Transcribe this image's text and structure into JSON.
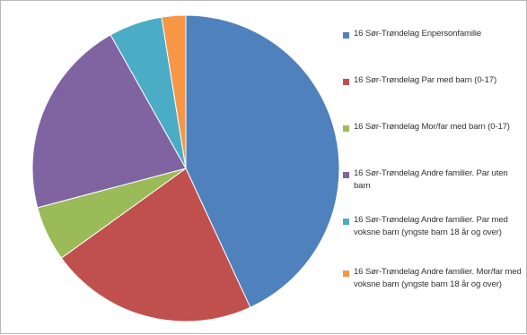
{
  "chart_data": {
    "type": "pie",
    "title": "",
    "series": [
      {
        "name": "16 Sør-Trøndelag Enpersonfamilie",
        "value": 44.4,
        "color": "#4f81bd"
      },
      {
        "name": "16 Sør-Trøndelag Par med barn (0-17)",
        "value": 22.6,
        "color": "#c0504d"
      },
      {
        "name": "16 Sør-Trøndelag Mor/far med barn (0-17)",
        "value": 6.0,
        "color": "#9bbb59"
      },
      {
        "name": "16 Sør-Trøndelag Andre familier. Par uten barn",
        "value": 21.6,
        "color": "#8064a2"
      },
      {
        "name": "16 Sør-Trøndelag Andre familier. Par med voksne barn (yngste barn 18 år og over)",
        "value": 5.8,
        "color": "#4bacc6"
      },
      {
        "name": "16 Sør-Trøndelag Andre familier. Mor/far med voksne barn (yngste barn 18 år og over)",
        "value": 2.6,
        "color": "#f79646"
      }
    ],
    "legend_position": "right"
  }
}
